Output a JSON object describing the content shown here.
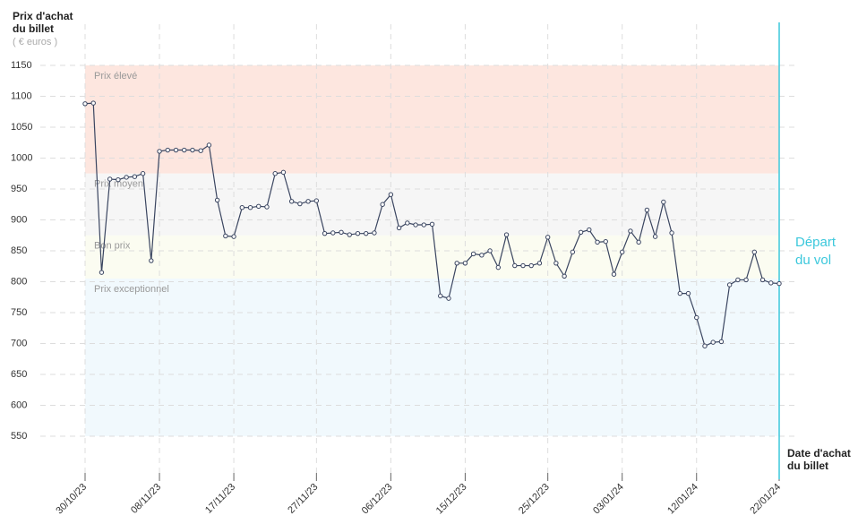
{
  "chart_data": {
    "type": "line",
    "y_title": "Prix d'achat du billet",
    "y_unit": "( € euros )",
    "x_title": "Date d'achat du billet",
    "event_label": "Départ du vol",
    "event_color": "#3cc8dc",
    "categories": [
      "30/10/23",
      null,
      null,
      null,
      null,
      null,
      null,
      null,
      null,
      "08/11/23",
      null,
      null,
      null,
      null,
      null,
      null,
      null,
      null,
      "17/11/23",
      null,
      null,
      null,
      null,
      null,
      null,
      null,
      null,
      null,
      "27/11/23",
      null,
      null,
      null,
      null,
      null,
      null,
      null,
      null,
      "06/12/23",
      null,
      null,
      null,
      null,
      null,
      null,
      null,
      null,
      "15/12/23",
      null,
      null,
      null,
      null,
      null,
      null,
      null,
      null,
      null,
      "25/12/23",
      null,
      null,
      null,
      null,
      null,
      null,
      null,
      null,
      "03/01/24",
      null,
      null,
      null,
      null,
      null,
      null,
      null,
      null,
      "12/01/24",
      null,
      null,
      null,
      null,
      null,
      null,
      null,
      null,
      null,
      "22/01/24"
    ],
    "series": [
      {
        "name": "Prix",
        "color": "#3a4560",
        "values": [
          1088,
          1089,
          815,
          966,
          965,
          969,
          970,
          975,
          834,
          1011,
          1013,
          1013,
          1013,
          1013,
          1012,
          1021,
          932,
          874,
          873,
          920,
          920,
          922,
          921,
          975,
          977,
          930,
          926,
          930,
          931,
          878,
          879,
          880,
          876,
          878,
          878,
          879,
          925,
          941,
          887,
          895,
          892,
          892,
          893,
          777,
          773,
          830,
          830,
          845,
          843,
          850,
          823,
          876,
          826,
          826,
          826,
          830,
          872,
          830,
          809,
          848,
          880,
          884,
          864,
          865,
          812,
          848,
          882,
          864,
          916,
          873,
          929,
          879,
          781,
          781,
          742,
          696,
          702,
          703,
          795,
          803,
          803,
          848,
          803,
          798,
          797
        ]
      }
    ],
    "bands": [
      {
        "label": "Prix élevé",
        "from": 975,
        "to": 1150,
        "color": "#fde6df"
      },
      {
        "label": "Prix moyen",
        "from": 875,
        "to": 975,
        "color": "#f6f6f6"
      },
      {
        "label": "Bon prix",
        "from": 805,
        "to": 875,
        "color": "#fbfcf1"
      },
      {
        "label": "Prix exceptionnel",
        "from": 550,
        "to": 805,
        "color": "#f1f9fd"
      }
    ],
    "ylim": [
      550,
      1150
    ],
    "yticks": [
      550,
      600,
      650,
      700,
      750,
      800,
      850,
      900,
      950,
      1000,
      1050,
      1100,
      1150
    ],
    "grid": true
  }
}
